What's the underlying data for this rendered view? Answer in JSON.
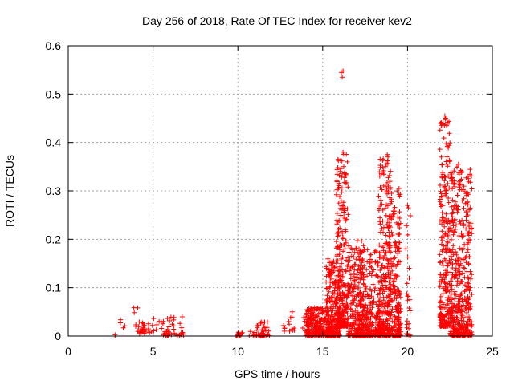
{
  "chart_data": {
    "type": "scatter",
    "title": "Day 256 of 2018, Rate Of TEC Index for receiver kev2",
    "xlabel": "GPS time / hours",
    "ylabel": "ROTI / TECUs",
    "xlim": [
      0,
      25
    ],
    "ylim": [
      0,
      0.6
    ],
    "xticks": [
      "0",
      "5",
      "10",
      "15",
      "20",
      "25"
    ],
    "yticks": [
      "0",
      "0.1",
      "0.2",
      "0.3",
      "0.4",
      "0.5",
      "0.6"
    ],
    "grid": true,
    "marker": "+",
    "color": "#ff0000",
    "clusters": [
      {
        "x": [
          2.7,
          3.4
        ],
        "y": [
          0.0,
          0.04
        ],
        "n": 6
      },
      {
        "x": [
          3.8,
          4.1
        ],
        "y": [
          0.02,
          0.06
        ],
        "n": 5
      },
      {
        "x": [
          4.1,
          4.6
        ],
        "y": [
          0.005,
          0.035
        ],
        "n": 22
      },
      {
        "x": [
          4.7,
          5.6
        ],
        "y": [
          0.005,
          0.045
        ],
        "n": 14
      },
      {
        "x": [
          5.6,
          6.8
        ],
        "y": [
          0.0,
          0.04
        ],
        "n": 40
      },
      {
        "x": [
          9.8,
          10.3
        ],
        "y": [
          0.0,
          0.015
        ],
        "n": 12
      },
      {
        "x": [
          10.6,
          11.1
        ],
        "y": [
          0.0,
          0.01
        ],
        "n": 8
      },
      {
        "x": [
          11.1,
          11.9
        ],
        "y": [
          0.0,
          0.03
        ],
        "n": 45
      },
      {
        "x": [
          12.6,
          14.0
        ],
        "y": [
          0.01,
          0.05
        ],
        "n": 16
      },
      {
        "x": [
          14.0,
          15.4
        ],
        "y": [
          0.0,
          0.06
        ],
        "n": 260
      },
      {
        "x": [
          15.2,
          16.0
        ],
        "y": [
          0.0,
          0.16
        ],
        "n": 260
      },
      {
        "x": [
          15.8,
          16.5
        ],
        "y": [
          0.02,
          0.38
        ],
        "n": 260
      },
      {
        "x": [
          16.5,
          17.5
        ],
        "y": [
          0.0,
          0.2
        ],
        "n": 240
      },
      {
        "x": [
          17.2,
          18.4
        ],
        "y": [
          0.0,
          0.18
        ],
        "n": 240
      },
      {
        "x": [
          18.3,
          19.0
        ],
        "y": [
          0.0,
          0.37
        ],
        "n": 260
      },
      {
        "x": [
          18.9,
          19.6
        ],
        "y": [
          0.0,
          0.3
        ],
        "n": 240
      },
      {
        "x": [
          19.9,
          20.2
        ],
        "y": [
          0.0,
          0.27
        ],
        "n": 25
      },
      {
        "x": [
          21.9,
          22.5
        ],
        "y": [
          0.02,
          0.45
        ],
        "n": 240
      },
      {
        "x": [
          22.5,
          23.8
        ],
        "y": [
          0.0,
          0.35
        ],
        "n": 460
      }
    ],
    "points": [
      {
        "x": 16.1,
        "y": 0.545
      },
      {
        "x": 16.2,
        "y": 0.548
      },
      {
        "x": 16.15,
        "y": 0.535
      },
      {
        "x": 22.2,
        "y": 0.455
      },
      {
        "x": 22.25,
        "y": 0.45
      },
      {
        "x": 22.3,
        "y": 0.435
      },
      {
        "x": 18.8,
        "y": 0.375
      },
      {
        "x": 18.85,
        "y": 0.37
      },
      {
        "x": 18.7,
        "y": 0.35
      },
      {
        "x": 16.2,
        "y": 0.38
      },
      {
        "x": 15.9,
        "y": 0.365
      },
      {
        "x": 23.0,
        "y": 0.355
      },
      {
        "x": 23.2,
        "y": 0.34
      },
      {
        "x": 22.0,
        "y": 0.37
      },
      {
        "x": 19.5,
        "y": 0.305
      },
      {
        "x": 20.0,
        "y": 0.27
      },
      {
        "x": 20.05,
        "y": 0.265
      },
      {
        "x": 13.2,
        "y": 0.05
      },
      {
        "x": 13.0,
        "y": 0.03
      },
      {
        "x": 20.1,
        "y": 0.14
      },
      {
        "x": 20.1,
        "y": 0.12
      }
    ]
  }
}
